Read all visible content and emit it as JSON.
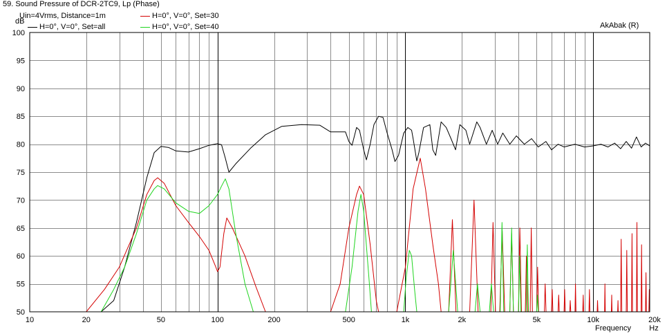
{
  "title": "59. Sound Pressure of DCR-2TC9, Lp (Phase)",
  "conditions": "Uin=4Vrms, Distance=1m",
  "watermark": "AkAbak (R)",
  "y_unit": "dB",
  "x_unit_label": "Frequency",
  "x_unit": "Hz",
  "chart_data": {
    "type": "line",
    "title": "59. Sound Pressure of DCR-2TC9, Lp (Phase)",
    "xlabel": "Frequency",
    "xunit": "Hz",
    "ylabel": "dB",
    "xscale": "log",
    "xlim": [
      10,
      20000
    ],
    "ylim": [
      50,
      100
    ],
    "grid": true,
    "legend_position": "top-left",
    "x_tick_labels": [
      "10",
      "20",
      "50",
      "100",
      "200",
      "500",
      "1k",
      "2k",
      "5k",
      "10k",
      "20k"
    ],
    "x_tick_values": [
      10,
      20,
      50,
      100,
      200,
      500,
      1000,
      2000,
      5000,
      10000,
      20000
    ],
    "y_tick_labels": [
      "100",
      "95",
      "90",
      "85",
      "80",
      "75",
      "70",
      "65",
      "60",
      "55",
      "50"
    ],
    "y_tick_values": [
      100,
      95,
      90,
      85,
      80,
      75,
      70,
      65,
      60,
      55,
      50
    ],
    "series": [
      {
        "name": "H=0°, V=0°, Set=all",
        "color": "#000000",
        "points": [
          [
            24,
            50
          ],
          [
            28,
            52
          ],
          [
            32,
            58
          ],
          [
            37,
            66
          ],
          [
            42,
            74
          ],
          [
            46,
            78.5
          ],
          [
            50,
            79.6
          ],
          [
            55,
            79.4
          ],
          [
            60,
            78.8
          ],
          [
            70,
            78.6
          ],
          [
            80,
            79.2
          ],
          [
            90,
            79.8
          ],
          [
            100,
            80.1
          ],
          [
            105,
            79.9
          ],
          [
            110,
            77.5
          ],
          [
            115,
            75
          ],
          [
            125,
            76.5
          ],
          [
            150,
            79.3
          ],
          [
            180,
            81.7
          ],
          [
            220,
            83.2
          ],
          [
            280,
            83.5
          ],
          [
            350,
            83.4
          ],
          [
            400,
            82.2
          ],
          [
            480,
            82.2
          ],
          [
            500,
            80.5
          ],
          [
            520,
            79.8
          ],
          [
            550,
            83
          ],
          [
            570,
            82.5
          ],
          [
            600,
            79
          ],
          [
            620,
            77.2
          ],
          [
            650,
            80
          ],
          [
            680,
            83.5
          ],
          [
            720,
            85
          ],
          [
            760,
            84.8
          ],
          [
            800,
            82
          ],
          [
            850,
            79
          ],
          [
            880,
            76.9
          ],
          [
            920,
            78
          ],
          [
            980,
            82
          ],
          [
            1030,
            83
          ],
          [
            1080,
            82.5
          ],
          [
            1100,
            81
          ],
          [
            1150,
            77
          ],
          [
            1180,
            78.5
          ],
          [
            1250,
            83
          ],
          [
            1350,
            83.5
          ],
          [
            1400,
            79
          ],
          [
            1450,
            78
          ],
          [
            1550,
            84
          ],
          [
            1650,
            83
          ],
          [
            1750,
            81
          ],
          [
            1850,
            79
          ],
          [
            1950,
            83.5
          ],
          [
            2100,
            82.5
          ],
          [
            2200,
            80
          ],
          [
            2400,
            84
          ],
          [
            2500,
            83
          ],
          [
            2700,
            80
          ],
          [
            2900,
            82.5
          ],
          [
            3100,
            80
          ],
          [
            3300,
            82
          ],
          [
            3600,
            80
          ],
          [
            3900,
            81.5
          ],
          [
            4300,
            80
          ],
          [
            4700,
            81
          ],
          [
            5100,
            79.5
          ],
          [
            5600,
            80.5
          ],
          [
            6000,
            79
          ],
          [
            6500,
            80
          ],
          [
            7000,
            79.5
          ],
          [
            8000,
            80
          ],
          [
            9000,
            79.5
          ],
          [
            10000,
            79.7
          ],
          [
            11000,
            80
          ],
          [
            12000,
            79.5
          ],
          [
            13000,
            80.2
          ],
          [
            14000,
            79.2
          ],
          [
            15000,
            80.5
          ],
          [
            16000,
            79.3
          ],
          [
            17000,
            81.3
          ],
          [
            18000,
            79.5
          ],
          [
            19000,
            80.2
          ],
          [
            20000,
            79.7
          ]
        ]
      },
      {
        "name": "H=0°, V=0°, Set=30",
        "color": "#d40000",
        "points": [
          [
            20,
            50
          ],
          [
            25,
            54
          ],
          [
            30,
            58
          ],
          [
            37,
            65
          ],
          [
            42,
            71
          ],
          [
            46,
            73.5
          ],
          [
            48,
            74
          ],
          [
            52,
            73
          ],
          [
            60,
            69
          ],
          [
            70,
            66
          ],
          [
            80,
            63.5
          ],
          [
            90,
            61
          ],
          [
            98,
            58
          ],
          [
            100,
            57.2
          ],
          [
            103,
            58
          ],
          [
            108,
            64
          ],
          [
            112,
            66.8
          ],
          [
            120,
            65
          ],
          [
            140,
            60
          ],
          [
            160,
            54.5
          ],
          [
            180,
            50
          ],
          [
            200,
            50
          ],
          [
            400,
            50
          ],
          [
            450,
            55
          ],
          [
            500,
            65
          ],
          [
            550,
            71
          ],
          [
            570,
            72.5
          ],
          [
            600,
            71
          ],
          [
            650,
            62
          ],
          [
            700,
            52
          ],
          [
            720,
            50
          ],
          [
            900,
            50
          ],
          [
            1000,
            58
          ],
          [
            1100,
            72
          ],
          [
            1200,
            77.5
          ],
          [
            1280,
            72
          ],
          [
            1400,
            62
          ],
          [
            1500,
            55
          ],
          [
            1550,
            50
          ],
          [
            1700,
            50
          ],
          [
            1780,
            66.5
          ],
          [
            1860,
            50
          ],
          [
            2200,
            50
          ],
          [
            2320,
            70
          ],
          [
            2440,
            50
          ],
          [
            2850,
            50
          ],
          [
            2930,
            66
          ],
          [
            3020,
            50
          ],
          [
            3180,
            50
          ],
          [
            3280,
            64.5
          ],
          [
            3380,
            50
          ],
          [
            3600,
            50
          ],
          [
            3680,
            64
          ],
          [
            3760,
            50
          ],
          [
            4000,
            50
          ],
          [
            4070,
            65
          ],
          [
            4150,
            50
          ],
          [
            4350,
            50
          ],
          [
            4410,
            60
          ],
          [
            4480,
            50
          ],
          [
            4620,
            50
          ],
          [
            4680,
            65
          ],
          [
            4750,
            50
          ],
          [
            5000,
            50
          ],
          [
            5060,
            58
          ],
          [
            5120,
            50
          ],
          [
            5500,
            50
          ],
          [
            5550,
            55
          ],
          [
            5610,
            50
          ],
          [
            6000,
            50
          ],
          [
            6050,
            54
          ],
          [
            6100,
            50
          ],
          [
            6500,
            50
          ],
          [
            6550,
            53
          ],
          [
            6600,
            50
          ],
          [
            7000,
            50
          ],
          [
            7050,
            54
          ],
          [
            7100,
            50
          ],
          [
            7500,
            50
          ],
          [
            7550,
            52
          ],
          [
            7600,
            50
          ],
          [
            8000,
            50
          ],
          [
            8050,
            55
          ],
          [
            8100,
            50
          ],
          [
            8800,
            50
          ],
          [
            8850,
            53
          ],
          [
            8900,
            50
          ],
          [
            9500,
            50
          ],
          [
            9550,
            54
          ],
          [
            9600,
            50
          ],
          [
            10500,
            50
          ],
          [
            10550,
            52
          ],
          [
            10600,
            50
          ],
          [
            11500,
            50
          ],
          [
            11550,
            55
          ],
          [
            11600,
            50
          ],
          [
            12500,
            50
          ],
          [
            12550,
            53
          ],
          [
            12600,
            50
          ],
          [
            13500,
            50
          ],
          [
            13550,
            52
          ],
          [
            13600,
            50
          ],
          [
            14000,
            50
          ],
          [
            14100,
            63
          ],
          [
            14200,
            50
          ],
          [
            15000,
            50
          ],
          [
            15100,
            61
          ],
          [
            15200,
            50
          ],
          [
            16000,
            50
          ],
          [
            16100,
            64
          ],
          [
            16200,
            50
          ],
          [
            17000,
            50
          ],
          [
            17100,
            66
          ],
          [
            17200,
            50
          ],
          [
            18000,
            50
          ],
          [
            18100,
            62
          ],
          [
            18200,
            50
          ],
          [
            19000,
            50
          ],
          [
            19100,
            57
          ],
          [
            19200,
            50
          ],
          [
            19800,
            50
          ],
          [
            19900,
            54
          ],
          [
            20000,
            50
          ]
        ]
      },
      {
        "name": "H=0°, V=0°, Set=40",
        "color": "#1ed41e",
        "points": [
          [
            24,
            50
          ],
          [
            28,
            54
          ],
          [
            32,
            58
          ],
          [
            37,
            64
          ],
          [
            42,
            70
          ],
          [
            46,
            72
          ],
          [
            48,
            72.6
          ],
          [
            52,
            72
          ],
          [
            60,
            69.5
          ],
          [
            70,
            68
          ],
          [
            80,
            67.6
          ],
          [
            90,
            69
          ],
          [
            100,
            71
          ],
          [
            105,
            72.5
          ],
          [
            110,
            73.8
          ],
          [
            115,
            72
          ],
          [
            125,
            64
          ],
          [
            140,
            55
          ],
          [
            155,
            50
          ],
          [
            480,
            50
          ],
          [
            520,
            58
          ],
          [
            560,
            68
          ],
          [
            580,
            71
          ],
          [
            600,
            68
          ],
          [
            640,
            56
          ],
          [
            660,
            50
          ],
          [
            980,
            50
          ],
          [
            1010,
            56
          ],
          [
            1050,
            61
          ],
          [
            1080,
            60
          ],
          [
            1120,
            54
          ],
          [
            1150,
            50
          ],
          [
            1700,
            50
          ],
          [
            1800,
            61
          ],
          [
            1900,
            50
          ],
          [
            2350,
            50
          ],
          [
            2420,
            55
          ],
          [
            2500,
            50
          ],
          [
            2800,
            50
          ],
          [
            2870,
            55
          ],
          [
            2950,
            50
          ],
          [
            3200,
            50
          ],
          [
            3270,
            66
          ],
          [
            3340,
            50
          ],
          [
            3600,
            50
          ],
          [
            3680,
            65
          ],
          [
            3760,
            50
          ],
          [
            4000,
            50
          ],
          [
            4060,
            60
          ],
          [
            4120,
            50
          ],
          [
            4400,
            50
          ],
          [
            4460,
            62
          ],
          [
            4520,
            50
          ],
          [
            5000,
            50
          ],
          [
            5050,
            53
          ],
          [
            5100,
            50
          ],
          [
            20000,
            50
          ]
        ]
      }
    ]
  }
}
